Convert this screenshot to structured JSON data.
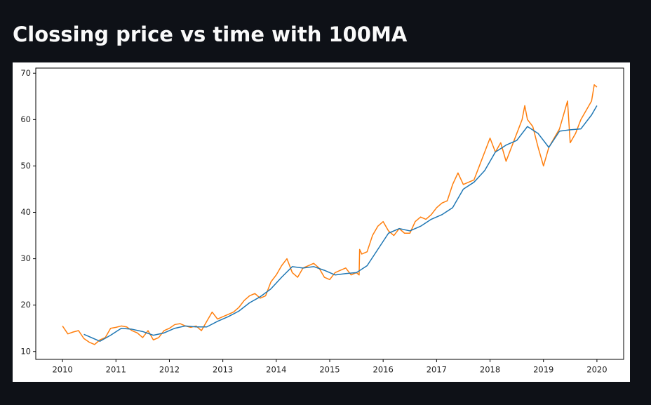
{
  "title": "Clossing price vs time with 100MA",
  "chart_data": {
    "type": "line",
    "xlim": [
      2009.5,
      2020.5
    ],
    "ylim": [
      8.3,
      71.1
    ],
    "xticks": [
      2010,
      2011,
      2012,
      2013,
      2014,
      2015,
      2016,
      2017,
      2018,
      2019,
      2020
    ],
    "yticks": [
      10,
      20,
      30,
      40,
      50,
      60,
      70
    ],
    "grid": false,
    "series": [
      {
        "color": "#ff7f0e",
        "x": [
          2010.0,
          2010.1,
          2010.2,
          2010.3,
          2010.4,
          2010.5,
          2010.6,
          2010.7,
          2010.8,
          2010.9,
          2011.0,
          2011.1,
          2011.2,
          2011.3,
          2011.4,
          2011.5,
          2011.6,
          2011.7,
          2011.8,
          2011.9,
          2012.0,
          2012.1,
          2012.2,
          2012.3,
          2012.4,
          2012.5,
          2012.6,
          2012.7,
          2012.8,
          2012.9,
          2013.0,
          2013.1,
          2013.2,
          2013.3,
          2013.4,
          2013.5,
          2013.6,
          2013.7,
          2013.8,
          2013.9,
          2014.0,
          2014.1,
          2014.2,
          2014.3,
          2014.4,
          2014.5,
          2014.6,
          2014.7,
          2014.8,
          2014.9,
          2015.0,
          2015.1,
          2015.2,
          2015.3,
          2015.4,
          2015.5,
          2015.55,
          2015.56,
          2015.6,
          2015.7,
          2015.8,
          2015.9,
          2016.0,
          2016.1,
          2016.2,
          2016.3,
          2016.4,
          2016.5,
          2016.6,
          2016.7,
          2016.8,
          2016.9,
          2017.0,
          2017.1,
          2017.2,
          2017.3,
          2017.4,
          2017.5,
          2017.6,
          2017.7,
          2017.8,
          2017.9,
          2018.0,
          2018.1,
          2018.2,
          2018.3,
          2018.4,
          2018.5,
          2018.6,
          2018.65,
          2018.7,
          2018.8,
          2018.9,
          2019.0,
          2019.1,
          2019.2,
          2019.3,
          2019.4,
          2019.45,
          2019.5,
          2019.6,
          2019.7,
          2019.8,
          2019.9,
          2019.95,
          2020.0
        ],
        "values": [
          15.5,
          13.8,
          14.2,
          14.5,
          12.8,
          12,
          11.5,
          12.5,
          13,
          15,
          15.2,
          15.5,
          15.3,
          14.5,
          14,
          13,
          14.5,
          12.5,
          13,
          14.5,
          15,
          15.8,
          16,
          15.5,
          15.2,
          15.5,
          14.5,
          16.5,
          18.5,
          17,
          17.5,
          18,
          18.5,
          19.5,
          21,
          22,
          22.5,
          21.5,
          22,
          25,
          26.5,
          28.5,
          30,
          27,
          26,
          28,
          28.5,
          29,
          28,
          26,
          25.5,
          27,
          27.5,
          28,
          26.5,
          27,
          26.5,
          32,
          31,
          31.5,
          35,
          37,
          38,
          36,
          35,
          36.5,
          35.5,
          35.5,
          38,
          39,
          38.5,
          39.5,
          41,
          42,
          42.5,
          46,
          48.5,
          46,
          46.5,
          47,
          50,
          53,
          56,
          53,
          55,
          51,
          54,
          57,
          60,
          63,
          60,
          58.5,
          54,
          50,
          54,
          56,
          58,
          62,
          64,
          55,
          57,
          60,
          62,
          64,
          67.5,
          67
        ]
      },
      {
        "color": "#1f77b4",
        "x": [
          2010.4,
          2010.5,
          2010.7,
          2010.9,
          2011.1,
          2011.3,
          2011.5,
          2011.7,
          2011.9,
          2012.1,
          2012.3,
          2012.5,
          2012.7,
          2012.9,
          2013.1,
          2013.3,
          2013.5,
          2013.7,
          2013.9,
          2014.1,
          2014.3,
          2014.5,
          2014.7,
          2014.9,
          2015.1,
          2015.3,
          2015.5,
          2015.7,
          2015.9,
          2016.1,
          2016.3,
          2016.5,
          2016.7,
          2016.9,
          2017.1,
          2017.3,
          2017.5,
          2017.7,
          2017.9,
          2018.1,
          2018.3,
          2018.5,
          2018.7,
          2018.9,
          2019.1,
          2019.3,
          2019.5,
          2019.7,
          2019.9,
          2020.0
        ],
        "values": [
          13.7,
          13.2,
          12.2,
          13.5,
          15,
          14.8,
          14.3,
          13.5,
          14,
          15,
          15.5,
          15.3,
          15.3,
          16.5,
          17.5,
          18.7,
          20.5,
          21.8,
          23.5,
          26,
          28.3,
          28,
          28.3,
          27.5,
          26.5,
          26.8,
          27,
          28.5,
          32,
          35.5,
          36.5,
          36,
          37,
          38.5,
          39.5,
          41,
          45,
          46.5,
          49,
          53,
          54.5,
          55.5,
          58.5,
          57,
          54,
          57.5,
          57.8,
          58,
          61,
          63
        ]
      }
    ]
  }
}
